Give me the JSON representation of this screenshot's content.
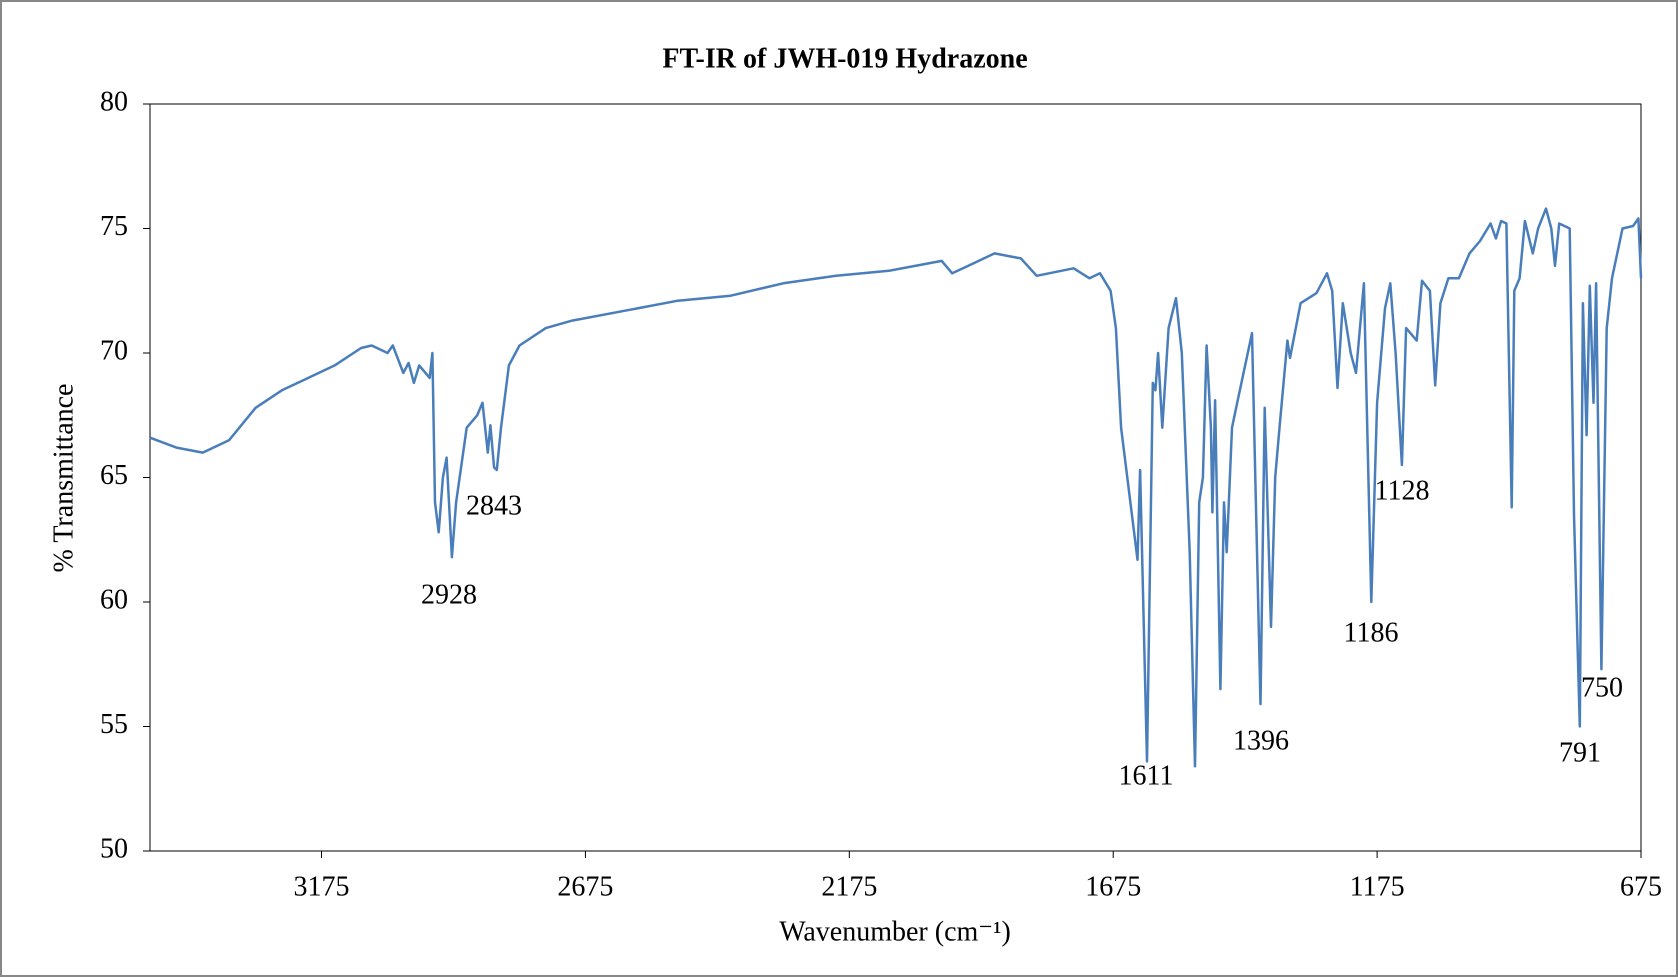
{
  "chart_data": {
    "type": "line",
    "title": "FT-IR of JWH-019 Hydrazone",
    "xlabel": "Wavenumber (cm⁻¹)",
    "ylabel": "% Transmittance",
    "xlim": [
      3500,
      675
    ],
    "ylim": [
      50,
      80
    ],
    "xticks": [
      3175,
      2675,
      2175,
      1675,
      1175,
      675
    ],
    "yticks": [
      50,
      55,
      60,
      65,
      70,
      75,
      80
    ],
    "series": [
      {
        "name": "JWH-019 Hydrazone",
        "color": "#4a7ebb",
        "x": [
          3500,
          3450,
          3400,
          3350,
          3300,
          3250,
          3200,
          3150,
          3100,
          3080,
          3050,
          3040,
          3020,
          3010,
          3000,
          2990,
          2970,
          2965,
          2960,
          2953,
          2945,
          2938,
          2928,
          2920,
          2900,
          2880,
          2870,
          2860,
          2855,
          2848,
          2843,
          2835,
          2820,
          2800,
          2750,
          2700,
          2600,
          2500,
          2400,
          2300,
          2200,
          2100,
          2000,
          1980,
          1950,
          1900,
          1850,
          1820,
          1750,
          1720,
          1700,
          1680,
          1670,
          1660,
          1629,
          1624,
          1611,
          1600,
          1595,
          1590,
          1582,
          1570,
          1556,
          1545,
          1530,
          1520,
          1512,
          1505,
          1498,
          1490,
          1487,
          1482,
          1472,
          1465,
          1460,
          1450,
          1440,
          1412,
          1396,
          1388,
          1376,
          1368,
          1360,
          1345,
          1340,
          1320,
          1290,
          1270,
          1260,
          1250,
          1240,
          1225,
          1215,
          1200,
          1186,
          1175,
          1160,
          1150,
          1140,
          1128,
          1120,
          1100,
          1090,
          1075,
          1065,
          1055,
          1040,
          1020,
          1000,
          980,
          960,
          950,
          940,
          930,
          920,
          915,
          905,
          895,
          880,
          870,
          855,
          845,
          838,
          830,
          810,
          802,
          791,
          785,
          778,
          772,
          765,
          760,
          750,
          740,
          730,
          710,
          690,
          680,
          675
        ],
        "values": [
          66.6,
          66.2,
          66.0,
          66.5,
          67.8,
          68.5,
          69.0,
          69.5,
          70.2,
          70.3,
          70.0,
          70.3,
          69.2,
          69.6,
          68.8,
          69.5,
          69.0,
          70.0,
          64.0,
          62.8,
          65.0,
          65.8,
          61.8,
          64.0,
          67.0,
          67.5,
          68.0,
          66.0,
          67.1,
          65.4,
          65.3,
          67.0,
          69.5,
          70.3,
          71.0,
          71.3,
          71.7,
          72.1,
          72.3,
          72.8,
          73.1,
          73.3,
          73.7,
          73.2,
          73.5,
          74.0,
          73.8,
          73.1,
          73.4,
          73.0,
          73.2,
          72.5,
          71.0,
          67.0,
          61.7,
          65.3,
          53.6,
          68.8,
          68.5,
          70.0,
          67.0,
          71.0,
          72.2,
          70.0,
          62.0,
          53.4,
          64.0,
          65.0,
          70.3,
          67.0,
          63.6,
          68.1,
          56.5,
          64.0,
          62.0,
          67.0,
          68.0,
          70.8,
          55.9,
          67.8,
          59.0,
          65.0,
          67.0,
          70.5,
          69.8,
          72.0,
          72.4,
          73.2,
          72.5,
          68.6,
          72.0,
          70.0,
          69.2,
          72.8,
          60.0,
          68.0,
          71.8,
          72.8,
          70.0,
          65.5,
          71.0,
          70.5,
          72.9,
          72.5,
          68.7,
          72.0,
          73.0,
          73.0,
          74.0,
          74.5,
          75.2,
          74.6,
          75.3,
          75.2,
          63.8,
          72.5,
          73.0,
          75.3,
          74.0,
          75.0,
          75.8,
          75.0,
          73.5,
          75.2,
          75.0,
          63.5,
          55.0,
          72.0,
          66.7,
          72.7,
          68.0,
          72.8,
          57.3,
          71.0,
          73.0,
          75.0,
          75.1,
          75.4,
          73.0
        ]
      }
    ],
    "annotations": [
      "2843",
      "2928",
      "1611",
      "1396",
      "1186",
      "1128",
      "791",
      "750"
    ]
  }
}
